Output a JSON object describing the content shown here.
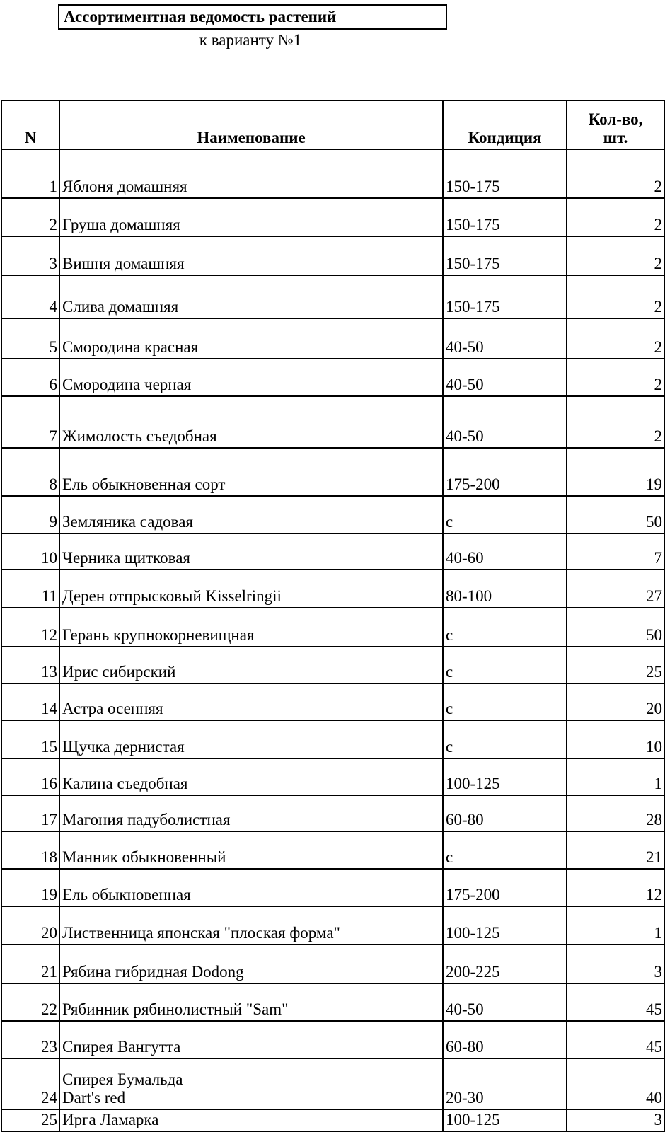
{
  "title": "Ассортиментная ведомость растений",
  "subtitle": "к варианту №1",
  "table": {
    "headers": {
      "n": "N",
      "name": "Наименование",
      "condition": "Кондиция",
      "qty_line1": "Кол-во,",
      "qty_line2": "шт."
    },
    "rows": [
      {
        "n": "1",
        "name": "Яблоня домашняя",
        "condition": "150-175",
        "qty": "2"
      },
      {
        "n": "2",
        "name": "Груша домашняя",
        "condition": "150-175",
        "qty": "2"
      },
      {
        "n": "3",
        "name": "Вишня домашняя",
        "condition": "150-175",
        "qty": "2"
      },
      {
        "n": "4",
        "name": "Слива домашняя",
        "condition": "150-175",
        "qty": "2"
      },
      {
        "n": "5",
        "name": "Смородина красная",
        "condition": "40-50",
        "qty": "2"
      },
      {
        "n": "6",
        "name": "Смородина черная",
        "condition": "40-50",
        "qty": "2"
      },
      {
        "n": "7",
        "name": "Жимолость съедобная",
        "condition": "40-50",
        "qty": "2"
      },
      {
        "n": "8",
        "name": "Ель обыкновенная сорт",
        "condition": "175-200",
        "qty": "19"
      },
      {
        "n": "9",
        "name": "Земляника садовая",
        "condition": "с",
        "qty": "50"
      },
      {
        "n": "10",
        "name": "Черника щитковая",
        "condition": "40-60",
        "qty": "7"
      },
      {
        "n": "11",
        "name": "Дерен отпрысковый Kisselringii",
        "condition": "80-100",
        "qty": "27"
      },
      {
        "n": "12",
        "name": "Герань крупнокорневищная",
        "condition": "с",
        "qty": "50"
      },
      {
        "n": "13",
        "name": "Ирис сибирский",
        "condition": "с",
        "qty": "25"
      },
      {
        "n": "14",
        "name": "Астра осенняя",
        "condition": "с",
        "qty": "20"
      },
      {
        "n": "15",
        "name": "Щучка дернистая",
        "condition": "с",
        "qty": "10"
      },
      {
        "n": "16",
        "name": "Калина съедобная",
        "condition": "100-125",
        "qty": "1"
      },
      {
        "n": "17",
        "name": "Магония падуболистная",
        "condition": "60-80",
        "qty": "28"
      },
      {
        "n": "18",
        "name": "Манник обыкновенный",
        "condition": "с",
        "qty": "21"
      },
      {
        "n": "19",
        "name": "Ель обыкновенная",
        "condition": "175-200",
        "qty": "12"
      },
      {
        "n": "20",
        "name": "Лиственница японская \"плоская форма\"",
        "condition": "100-125",
        "qty": "1"
      },
      {
        "n": "21",
        "name": "Рябина гибридная Dodong",
        "condition": "200-225",
        "qty": "3"
      },
      {
        "n": "22",
        "name": "Рябинник рябинолистный \"Sam\"",
        "condition": "40-50",
        "qty": "45"
      },
      {
        "n": "23",
        "name": "Спирея Вангутта",
        "condition": "60-80",
        "qty": "45"
      },
      {
        "n": "24",
        "name": "Спирея Бумальда",
        "name_line2": "Dart's red",
        "condition": "20-30",
        "qty": "40"
      },
      {
        "n": "25",
        "name": "Ирга Ламарка",
        "condition": "100-125",
        "qty": "3"
      }
    ]
  }
}
